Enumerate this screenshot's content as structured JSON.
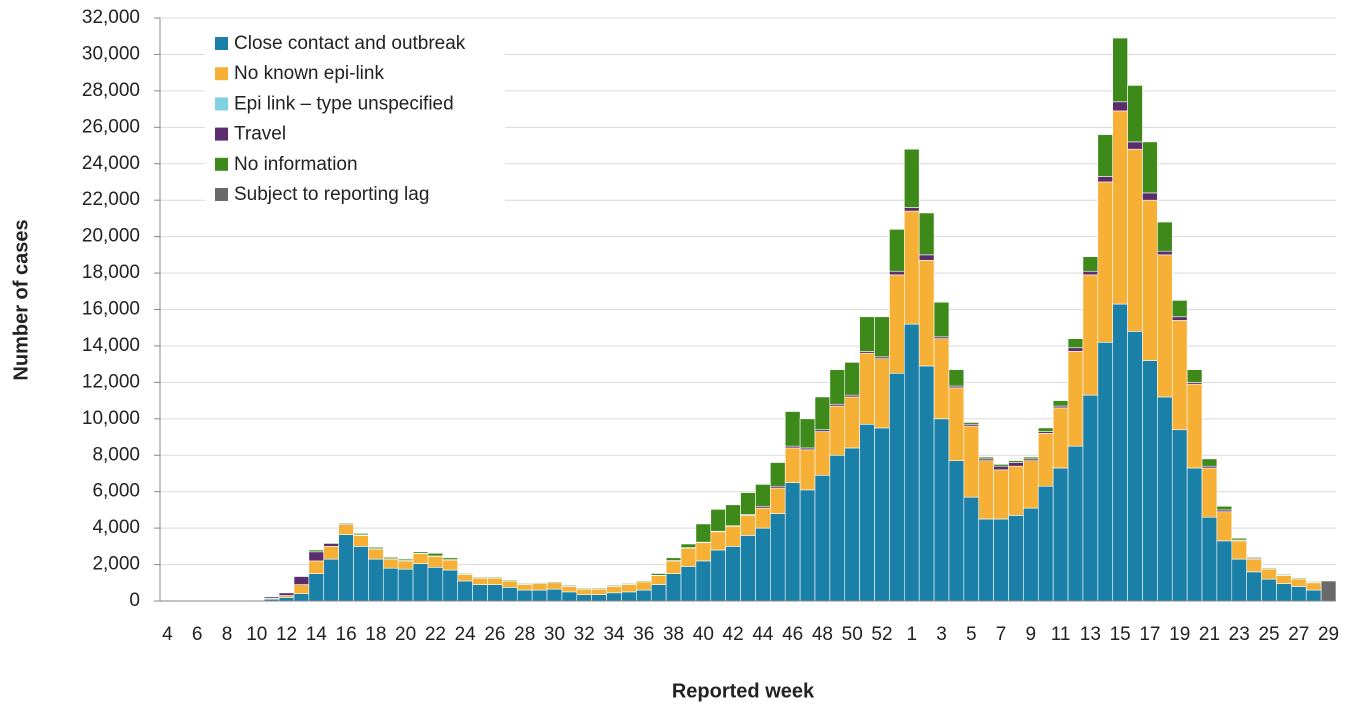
{
  "chart_data": {
    "type": "stacked-bar",
    "x_label": "Reported week",
    "y_label": "Number of cases",
    "categories": [
      "4",
      null,
      "6",
      null,
      "8",
      null,
      "10",
      null,
      "12",
      null,
      "14",
      null,
      "16",
      null,
      "18",
      null,
      "20",
      null,
      "22",
      null,
      "24",
      null,
      "26",
      null,
      "28",
      null,
      "30",
      null,
      "32",
      null,
      "34",
      null,
      "36",
      null,
      "38",
      null,
      "40",
      null,
      "42",
      null,
      "44",
      null,
      "46",
      null,
      "48",
      null,
      "50",
      null,
      "52",
      null,
      "1",
      null,
      "3",
      null,
      "5",
      null,
      "7",
      null,
      "9",
      null,
      "11",
      null,
      "13",
      null,
      "15",
      null,
      "17",
      null,
      "19",
      null,
      "21",
      null,
      "23",
      null,
      "25",
      null,
      "27",
      null,
      "29"
    ],
    "series": [
      {
        "name": "Close contact and outbreak",
        "color": "#1a80a8",
        "values": [
          20,
          0,
          0,
          0,
          10,
          10,
          10,
          100,
          200,
          400,
          1500,
          2300,
          3650,
          3000,
          2300,
          1800,
          1750,
          2050,
          1850,
          1700,
          1100,
          900,
          900,
          750,
          600,
          600,
          650,
          500,
          350,
          350,
          450,
          500,
          600,
          900,
          1500,
          1900,
          2200,
          2800,
          3000,
          3600,
          4000,
          4800,
          6500,
          6100,
          6900,
          8000,
          8400,
          9700,
          9500,
          12500,
          15200,
          12900,
          10000,
          7700,
          5700,
          4500,
          4500,
          4700,
          5100,
          6300,
          7300,
          8500,
          11300,
          14200,
          16300,
          14800,
          13200,
          11200,
          9400,
          7300,
          4600,
          3300,
          2300,
          1600,
          1200,
          950,
          800,
          600,
          0
        ]
      },
      {
        "name": "No known epi-link",
        "color": "#f7b036",
        "values": [
          0,
          0,
          0,
          0,
          0,
          0,
          10,
          50,
          100,
          500,
          700,
          700,
          550,
          600,
          550,
          500,
          450,
          550,
          600,
          550,
          350,
          350,
          350,
          350,
          300,
          350,
          350,
          300,
          300,
          300,
          350,
          400,
          450,
          500,
          700,
          1000,
          1000,
          1000,
          1100,
          1100,
          1100,
          1400,
          1900,
          2200,
          2400,
          2700,
          2800,
          3900,
          3800,
          5400,
          6200,
          5800,
          4400,
          4000,
          3900,
          3200,
          2700,
          2700,
          2600,
          2900,
          3300,
          5200,
          6600,
          8800,
          10600,
          10000,
          8800,
          7800,
          6000,
          4600,
          2700,
          1600,
          1000,
          700,
          550,
          450,
          400,
          400,
          0
        ]
      },
      {
        "name": "Epi link – type unspecified",
        "color": "#7fd0e0",
        "values": [
          0,
          0,
          0,
          0,
          0,
          0,
          0,
          0,
          0,
          0,
          0,
          0,
          0,
          0,
          0,
          0,
          0,
          0,
          0,
          0,
          0,
          0,
          0,
          0,
          0,
          0,
          0,
          0,
          0,
          0,
          0,
          0,
          0,
          0,
          0,
          0,
          0,
          0,
          0,
          0,
          0,
          0,
          0,
          0,
          0,
          0,
          0,
          0,
          0,
          0,
          0,
          0,
          0,
          0,
          0,
          0,
          0,
          0,
          0,
          0,
          0,
          0,
          0,
          0,
          0,
          0,
          0,
          0,
          0,
          0,
          0,
          0,
          0,
          0,
          0,
          0,
          0,
          0,
          0
        ]
      },
      {
        "name": "Travel",
        "color": "#5c2d6e",
        "values": [
          10,
          0,
          0,
          0,
          0,
          10,
          10,
          80,
          150,
          450,
          500,
          150,
          50,
          30,
          20,
          20,
          20,
          20,
          20,
          20,
          10,
          10,
          10,
          10,
          10,
          10,
          10,
          10,
          10,
          10,
          10,
          10,
          10,
          10,
          20,
          30,
          30,
          30,
          30,
          50,
          100,
          100,
          100,
          100,
          100,
          100,
          100,
          100,
          100,
          200,
          200,
          300,
          100,
          100,
          100,
          100,
          200,
          200,
          100,
          100,
          100,
          200,
          200,
          300,
          500,
          400,
          400,
          200,
          200,
          100,
          100,
          100,
          50,
          50,
          30,
          30,
          20,
          20,
          0
        ]
      },
      {
        "name": "No information",
        "color": "#3d8a1a",
        "values": [
          0,
          0,
          0,
          0,
          0,
          0,
          0,
          20,
          30,
          30,
          100,
          50,
          50,
          80,
          80,
          80,
          80,
          80,
          150,
          100,
          50,
          50,
          50,
          50,
          50,
          50,
          50,
          50,
          50,
          50,
          50,
          50,
          50,
          100,
          150,
          200,
          1000,
          1200,
          1150,
          1200,
          1200,
          1300,
          1900,
          1600,
          1800,
          1900,
          1800,
          1900,
          2200,
          2300,
          3200,
          2300,
          1900,
          900,
          100,
          100,
          100,
          100,
          100,
          200,
          300,
          500,
          800,
          2300,
          3500,
          3100,
          2800,
          1600,
          900,
          700,
          400,
          200,
          100,
          50,
          50,
          50,
          50,
          50,
          0
        ]
      },
      {
        "name": "Subject to reporting lag",
        "color": "#6a6a6a",
        "values": [
          0,
          0,
          0,
          0,
          0,
          0,
          0,
          0,
          0,
          0,
          0,
          0,
          0,
          0,
          0,
          0,
          0,
          0,
          0,
          0,
          0,
          0,
          0,
          0,
          0,
          0,
          0,
          0,
          0,
          0,
          0,
          0,
          0,
          0,
          0,
          0,
          0,
          0,
          0,
          0,
          0,
          0,
          0,
          0,
          0,
          0,
          0,
          0,
          0,
          0,
          0,
          0,
          0,
          0,
          0,
          0,
          0,
          0,
          0,
          0,
          0,
          0,
          0,
          0,
          0,
          0,
          0,
          0,
          0,
          0,
          0,
          0,
          0,
          0,
          0,
          0,
          0,
          0,
          1100
        ]
      }
    ],
    "ylim": [
      0,
      32000
    ],
    "yticks": [
      0,
      {
        "value": 2000,
        "label": "2,000"
      },
      {
        "value": 4000,
        "label": "4,000"
      },
      {
        "value": 6000,
        "label": "6,000"
      },
      {
        "value": 8000,
        "label": "8,000"
      },
      {
        "value": 10000,
        "label": "10,000"
      },
      {
        "value": 12000,
        "label": "12,000"
      },
      {
        "value": 14000,
        "label": "14,000"
      },
      {
        "value": 16000,
        "label": "16,000"
      },
      {
        "value": 18000,
        "label": "18,000"
      },
      {
        "value": 20000,
        "label": "20,000"
      },
      {
        "value": 22000,
        "label": "22,000"
      },
      {
        "value": 24000,
        "label": "24,000"
      },
      {
        "value": 26000,
        "label": "26,000"
      },
      {
        "value": 28000,
        "label": "28,000"
      },
      {
        "value": 30000,
        "label": "30,000"
      },
      {
        "value": 32000,
        "label": "32,000"
      }
    ],
    "grid": true,
    "legend": "upper-left"
  }
}
